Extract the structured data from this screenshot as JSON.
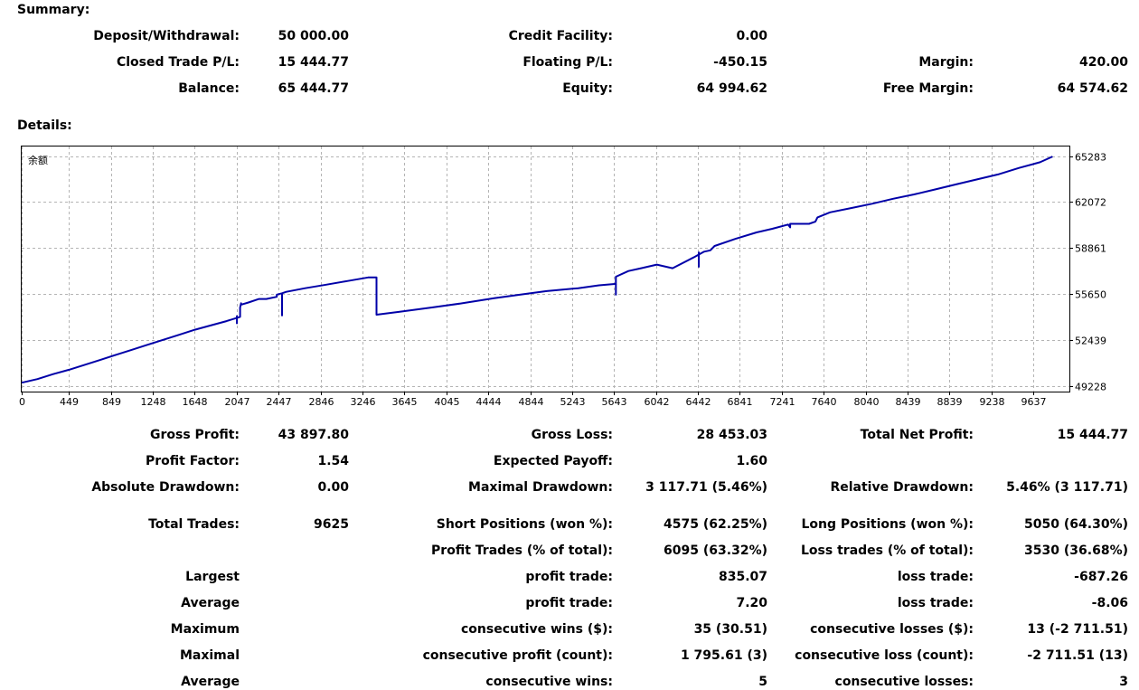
{
  "summary": {
    "title": "Summary:",
    "deposit_withdrawal": {
      "label": "Deposit/Withdrawal:",
      "value": "50 000.00"
    },
    "credit_facility": {
      "label": "Credit Facility:",
      "value": "0.00"
    },
    "closed_trade_pl": {
      "label": "Closed Trade P/L:",
      "value": "15 444.77"
    },
    "floating_pl": {
      "label": "Floating P/L:",
      "value": "-450.15"
    },
    "margin": {
      "label": "Margin:",
      "value": "420.00"
    },
    "balance": {
      "label": "Balance:",
      "value": "65 444.77"
    },
    "equity": {
      "label": "Equity:",
      "value": "64 994.62"
    },
    "free_margin": {
      "label": "Free Margin:",
      "value": "64 574.62"
    }
  },
  "details": {
    "title": "Details:"
  },
  "chart_data": {
    "type": "line",
    "legend_label": "余额",
    "line_color": "#0000a8",
    "grid": true,
    "x_ticks": [
      0,
      449,
      849,
      1248,
      1648,
      2047,
      2447,
      2846,
      3246,
      3645,
      4045,
      4444,
      4844,
      5243,
      5643,
      6042,
      6442,
      6841,
      7241,
      7640,
      8040,
      8439,
      8839,
      9238,
      9637
    ],
    "y_ticks": [
      49228,
      52439,
      55650,
      58861,
      62072,
      65283
    ],
    "xlim": [
      0,
      9980
    ],
    "ylim": [
      48830,
      65950
    ],
    "series": [
      {
        "x": [
          0,
          150,
          300,
          450,
          600,
          750,
          900,
          1050,
          1200,
          1350,
          1500,
          1650,
          1800,
          1950,
          2080,
          2080,
          2090,
          2090,
          2160,
          2260,
          2330,
          2430,
          2430,
          2480,
          2520,
          2700,
          2900,
          3100,
          3300,
          3360,
          3380,
          3380,
          3600,
          3900,
          4200,
          4500,
          4800,
          5000,
          5300,
          5500,
          5650,
          5660,
          5660,
          5780,
          5900,
          6050,
          6200,
          6400,
          6500,
          6560,
          6600,
          6800,
          7000,
          7150,
          7300,
          7320,
          7320,
          7500,
          7560,
          7580,
          7700,
          7900,
          8100,
          8300,
          8500,
          8700,
          8900,
          9100,
          9300,
          9500,
          9700,
          9820
        ],
        "y": [
          49450,
          49700,
          50050,
          50350,
          50700,
          51050,
          51400,
          51750,
          52100,
          52450,
          52800,
          53150,
          53450,
          53750,
          54050,
          54700,
          55000,
          54900,
          55050,
          55300,
          55300,
          55450,
          55600,
          55700,
          55800,
          56050,
          56300,
          56550,
          56800,
          56800,
          56800,
          54200,
          54400,
          54700,
          55000,
          55350,
          55650,
          55850,
          56050,
          56250,
          56350,
          56350,
          56850,
          57250,
          57450,
          57700,
          57450,
          58200,
          58600,
          58700,
          59000,
          59500,
          59950,
          60200,
          60500,
          60300,
          60550,
          60550,
          60700,
          61000,
          61350,
          61650,
          61950,
          62300,
          62600,
          62950,
          63300,
          63650,
          64000,
          64450,
          64850,
          65250
        ]
      }
    ],
    "spikes": [
      {
        "x": 2050,
        "y0": 54150,
        "y1": 53550
      },
      {
        "x": 2480,
        "y0": 55700,
        "y1": 54100
      },
      {
        "x": 5660,
        "y0": 56350,
        "y1": 55550
      },
      {
        "x": 6450,
        "y0": 58600,
        "y1": 57500
      }
    ]
  },
  "stats": {
    "gross_profit": {
      "label": "Gross Profit:",
      "value": "43 897.80"
    },
    "gross_loss": {
      "label": "Gross Loss:",
      "value": "28 453.03"
    },
    "total_net_profit": {
      "label": "Total Net Profit:",
      "value": "15 444.77"
    },
    "profit_factor": {
      "label": "Profit Factor:",
      "value": "1.54"
    },
    "expected_payoff": {
      "label": "Expected Payoff:",
      "value": "1.60"
    },
    "absolute_drawdown": {
      "label": "Absolute Drawdown:",
      "value": "0.00"
    },
    "maximal_drawdown": {
      "label": "Maximal Drawdown:",
      "value": "3 117.71 (5.46%)"
    },
    "relative_drawdown": {
      "label": "Relative Drawdown:",
      "value": "5.46% (3 117.71)"
    },
    "total_trades": {
      "label": "Total Trades:",
      "value": "9625"
    },
    "short_positions": {
      "label": "Short Positions (won %):",
      "value": "4575 (62.25%)"
    },
    "long_positions": {
      "label": "Long Positions (won %):",
      "value": "5050 (64.30%)"
    },
    "profit_trades": {
      "label": "Profit Trades (% of total):",
      "value": "6095 (63.32%)"
    },
    "loss_trades": {
      "label": "Loss trades (% of total):",
      "value": "3530 (36.68%)"
    },
    "largest": {
      "label": "Largest",
      "profit_label": "profit trade:",
      "profit_value": "835.07",
      "loss_label": "loss trade:",
      "loss_value": "-687.26"
    },
    "average": {
      "label": "Average",
      "profit_label": "profit trade:",
      "profit_value": "7.20",
      "loss_label": "loss trade:",
      "loss_value": "-8.06"
    },
    "maximum": {
      "label": "Maximum",
      "profit_label": "consecutive wins ($):",
      "profit_value": "35 (30.51)",
      "loss_label": "consecutive losses ($):",
      "loss_value": "13 (-2 711.51)"
    },
    "maximal": {
      "label": "Maximal",
      "profit_label": "consecutive profit (count):",
      "profit_value": "1 795.61 (3)",
      "loss_label": "consecutive loss (count):",
      "loss_value": "-2 711.51 (13)"
    },
    "average_consecutive": {
      "label": "Average",
      "profit_label": "consecutive wins:",
      "profit_value": "5",
      "loss_label": "consecutive losses:",
      "loss_value": "3"
    }
  }
}
